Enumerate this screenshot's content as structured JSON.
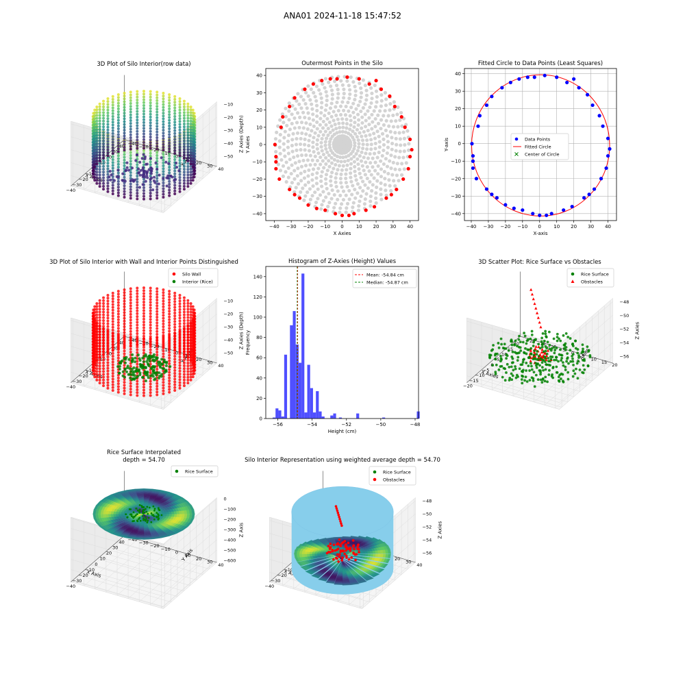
{
  "suptitle": "ANA01 2024-11-18 15:47:52",
  "charts": {
    "p1": {
      "type": "scatter3d",
      "title": "3D Plot of Silo Interior(row data)",
      "xlabel": "X Axies",
      "ylabel": "Y Axies",
      "zlabel": "Z Axies (Depth)",
      "xticks": [
        -40,
        -30,
        -20,
        -10,
        0,
        10,
        20,
        30,
        40
      ],
      "yticks": [
        -40,
        -30,
        -20,
        -10,
        0,
        10,
        20,
        30,
        40
      ],
      "zticks": [
        -50,
        -40,
        -30,
        -20,
        -10
      ],
      "xlim": [
        -42,
        42
      ],
      "ylim": [
        -42,
        42
      ],
      "zlim": [
        -58,
        -8
      ],
      "colormap": [
        "#440154",
        "#3b528b",
        "#21918c",
        "#5ec962",
        "#fde725"
      ],
      "cylinder": {
        "radius": 40,
        "z_top": -10,
        "z_bottom": -56
      }
    },
    "p2": {
      "type": "scatter",
      "title": "Outermost Points in the Silo",
      "xlabel": "X Axies",
      "ylabel": "Y Axies",
      "xticks": [
        -40,
        -30,
        -20,
        -10,
        0,
        10,
        20,
        30,
        40
      ],
      "yticks": [
        -40,
        -30,
        -20,
        -10,
        0,
        10,
        20,
        30,
        40
      ],
      "xlim": [
        -45,
        45
      ],
      "ylim": [
        -44,
        44
      ],
      "inner_color": "#d3d3d3",
      "outer_color": "#ff0000",
      "outer_points": [
        [
          -39.6,
          0
        ],
        [
          -39,
          -7
        ],
        [
          -39,
          -14
        ],
        [
          -39,
          -10
        ],
        [
          -37,
          -20
        ],
        [
          -36,
          10
        ],
        [
          -35,
          16
        ],
        [
          -31,
          22
        ],
        [
          -31,
          -26
        ],
        [
          -28,
          27
        ],
        [
          -28,
          -29
        ],
        [
          -25,
          -31
        ],
        [
          -22,
          32
        ],
        [
          -20,
          -35
        ],
        [
          -17,
          35
        ],
        [
          -15,
          -37
        ],
        [
          -12,
          37
        ],
        [
          -10,
          -38
        ],
        [
          -7,
          38
        ],
        [
          -4,
          -40
        ],
        [
          -3,
          38
        ],
        [
          0,
          -41
        ],
        [
          3,
          39
        ],
        [
          4,
          -41
        ],
        [
          7,
          -40
        ],
        [
          10,
          38
        ],
        [
          14,
          -38
        ],
        [
          16,
          35
        ],
        [
          19,
          -36
        ],
        [
          20,
          37
        ],
        [
          23,
          32
        ],
        [
          26,
          -31
        ],
        [
          28,
          28
        ],
        [
          29,
          -29
        ],
        [
          31,
          22
        ],
        [
          32,
          -26
        ],
        [
          35,
          16
        ],
        [
          36,
          -20
        ],
        [
          37,
          10
        ],
        [
          39,
          -14
        ],
        [
          40,
          -7
        ],
        [
          41,
          -3
        ],
        [
          40,
          3
        ]
      ]
    },
    "p3": {
      "type": "scatter",
      "title": "Fitted Circle to Data Points (Least Squares)",
      "xlabel": "X-axis",
      "ylabel": "Y-axis",
      "xticks": [
        -40,
        -30,
        -20,
        -10,
        0,
        10,
        20,
        30,
        40
      ],
      "yticks": [
        -40,
        -30,
        -20,
        -10,
        0,
        10,
        20,
        30,
        40
      ],
      "xlim": [
        -44,
        45
      ],
      "ylim": [
        -44,
        43
      ],
      "grid": true,
      "legend": [
        "Data Points",
        "Fitted Circle",
        "Center of Circle"
      ],
      "legend_position": "center",
      "colors": {
        "points": "#0000ff",
        "circle": "#ff0000",
        "center": "#008000"
      },
      "circle": {
        "cx": 0.6,
        "cy": -1,
        "r": 40.4
      },
      "points": [
        [
          -39.6,
          0
        ],
        [
          -39,
          -7
        ],
        [
          -39,
          -14
        ],
        [
          -39,
          -10
        ],
        [
          -37,
          -20
        ],
        [
          -36,
          10
        ],
        [
          -35,
          16
        ],
        [
          -31,
          22
        ],
        [
          -31,
          -26
        ],
        [
          -28,
          27
        ],
        [
          -28,
          -29
        ],
        [
          -25,
          -31
        ],
        [
          -22,
          32
        ],
        [
          -20,
          -35
        ],
        [
          -17,
          35
        ],
        [
          -15,
          -37
        ],
        [
          -12,
          37
        ],
        [
          -10,
          -38
        ],
        [
          -7,
          38
        ],
        [
          -4,
          -40
        ],
        [
          -3,
          38
        ],
        [
          0,
          -41
        ],
        [
          3,
          39
        ],
        [
          4,
          -41
        ],
        [
          7,
          -40
        ],
        [
          10,
          38
        ],
        [
          14,
          -38
        ],
        [
          16,
          35
        ],
        [
          19,
          -36
        ],
        [
          20,
          37
        ],
        [
          23,
          32
        ],
        [
          26,
          -31
        ],
        [
          28,
          28
        ],
        [
          29,
          -29
        ],
        [
          31,
          22
        ],
        [
          32,
          -26
        ],
        [
          35,
          16
        ],
        [
          36,
          -20
        ],
        [
          37,
          10
        ],
        [
          39,
          -14
        ],
        [
          40,
          -7
        ],
        [
          41,
          -3
        ],
        [
          40,
          3
        ]
      ]
    },
    "p4": {
      "type": "scatter3d",
      "title": "3D Plot of Silo Interior with Wall and Interior Points Distinguished",
      "xlabel": "X Axies",
      "ylabel": "Y Axies",
      "zlabel": "Z Axies (Depth)",
      "xticks": [
        -40,
        -30,
        -20,
        -10,
        0,
        10,
        20,
        30,
        40
      ],
      "yticks": [
        -40,
        -30,
        -20,
        -10,
        0,
        10,
        20,
        30,
        40
      ],
      "zticks": [
        -50,
        -40,
        -30,
        -20,
        -10
      ],
      "xlim": [
        -42,
        42
      ],
      "ylim": [
        -42,
        42
      ],
      "zlim": [
        -58,
        -8
      ],
      "legend": [
        "Silo Wall",
        "Interior (Rice)"
      ],
      "legend_position": "top-right",
      "colors": {
        "wall": "#ff0000",
        "interior": "#008000"
      },
      "cylinder": {
        "radius": 40,
        "z_top": -10,
        "z_bottom": -56
      }
    },
    "p5": {
      "type": "bar",
      "title": "Histogram of Z-Axies (Height) Values",
      "xlabel": "Height (cm)",
      "ylabel": "Frequency",
      "xticks": [
        -56,
        -54,
        -52,
        -50,
        -48
      ],
      "yticks": [
        0,
        20,
        40,
        60,
        80,
        100,
        120,
        140
      ],
      "xlim": [
        -56.7,
        -47.8
      ],
      "ylim": [
        0,
        150
      ],
      "legend": [
        "Mean: -54.84 cm",
        "Median: -54.87 cm"
      ],
      "legend_position": "top-right",
      "mean": -54.84,
      "median": -54.87,
      "bar_color": "#4f4fff",
      "bin_start": -56.3,
      "bin_width": 0.168,
      "values": [
        1,
        10,
        8,
        2,
        63,
        0,
        92,
        106,
        73,
        55,
        143,
        6,
        53,
        30,
        6,
        27,
        7,
        2,
        0,
        0,
        3,
        5,
        0,
        1,
        0,
        0,
        0,
        0,
        0,
        5,
        0,
        0,
        0,
        0,
        0,
        0,
        0,
        0,
        1,
        0,
        0,
        0,
        0,
        0,
        0,
        0,
        0,
        0,
        0,
        0,
        7
      ]
    },
    "p6": {
      "type": "scatter3d",
      "title": "3D Scatter Plot: Rice Surface vs Obstacles",
      "xlabel": "X Axies",
      "ylabel": "Y Axies",
      "zlabel": "Z Axies",
      "xticks": [
        -20,
        -15,
        -10,
        -5,
        0,
        5,
        10,
        15,
        20
      ],
      "yticks": [
        -20,
        -15,
        -10,
        -5,
        0,
        5,
        10,
        15,
        20
      ],
      "zticks": [
        -56,
        -54,
        -52,
        -50,
        -48
      ],
      "xlim": [
        -22,
        22
      ],
      "ylim": [
        -22,
        22
      ],
      "zlim": [
        -57,
        -47.5
      ],
      "legend": [
        "Rice Surface",
        "Obstacles"
      ],
      "legend_position": "top-right",
      "colors": {
        "rice": "#008000",
        "obstacles": "#ff0000"
      }
    },
    "p7": {
      "type": "surface3d",
      "title": "Rice Surface Interpolated",
      "subtitle": "depth = 54.70",
      "xlabel": "X Axis",
      "ylabel": "Y Axis",
      "zlabel": "Z Axis",
      "xticks": [
        -40,
        -30,
        -20,
        -10,
        0,
        10,
        20,
        30,
        40
      ],
      "yticks": [
        -40,
        -30,
        -20,
        -10,
        0,
        10,
        20,
        30,
        40
      ],
      "zticks": [
        -600,
        -500,
        -400,
        -300,
        -200,
        -100,
        0
      ],
      "xlim": [
        -42,
        42
      ],
      "ylim": [
        -42,
        42
      ],
      "zlim": [
        -620,
        10
      ],
      "legend": [
        "Rice Surface"
      ],
      "legend_position": "top-right",
      "colors": {
        "rice": "#008000"
      }
    },
    "p8": {
      "type": "surface3d",
      "title": "Silo Interior Representation using weighted average depth = 54.70",
      "xlabel": "X Axies",
      "ylabel": "Y Axies",
      "zlabel": "Z Axies",
      "xticks": [
        -40,
        -30,
        -20,
        -10,
        0,
        10,
        20,
        30,
        40
      ],
      "yticks": [
        -40,
        -30,
        -20,
        -10,
        0,
        10,
        20,
        30,
        40
      ],
      "zticks": [
        -56,
        -54,
        -52,
        -50,
        -48
      ],
      "xlim": [
        -42,
        42
      ],
      "ylim": [
        -42,
        42
      ],
      "zlim": [
        -57.5,
        -47.5
      ],
      "legend": [
        "Rice Surface",
        "Obstacles"
      ],
      "legend_position": "top-right",
      "colors": {
        "rice": "#008000",
        "obstacles": "#ff0000",
        "wall": "#87ceeb"
      }
    }
  }
}
